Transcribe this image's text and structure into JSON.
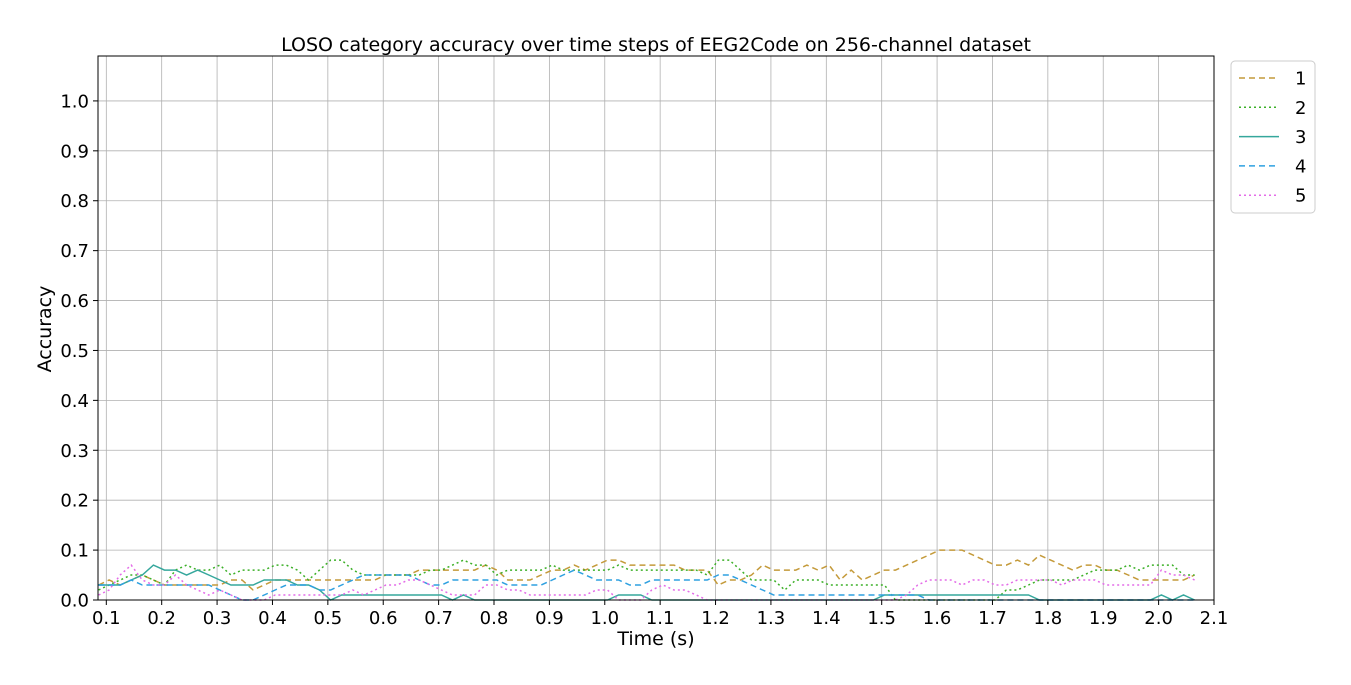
{
  "chart_data": {
    "type": "line",
    "title": "LOSO category accuracy over time steps of EEG2Code on 256-channel dataset",
    "xlabel": "Time (s)",
    "ylabel": "Accuracy",
    "xlim": [
      0.085,
      2.1
    ],
    "ylim": [
      0.0,
      1.09
    ],
    "xticks": [
      0.1,
      0.2,
      0.3,
      0.4,
      0.5,
      0.6,
      0.7,
      0.8,
      0.9,
      1.0,
      1.1,
      1.2,
      1.3,
      1.4,
      1.5,
      1.6,
      1.7,
      1.8,
      1.9,
      2.0,
      2.1
    ],
    "xtick_labels": [
      "0.1",
      "0.2",
      "0.3",
      "0.4",
      "0.5",
      "0.6",
      "0.7",
      "0.8",
      "0.9",
      "1.0",
      "1.1",
      "1.2",
      "1.3",
      "1.4",
      "1.5",
      "1.6",
      "1.7",
      "1.8",
      "1.9",
      "2.0",
      "2.1"
    ],
    "yticks": [
      0.0,
      0.1,
      0.2,
      0.3,
      0.4,
      0.5,
      0.6,
      0.7,
      0.8,
      0.9,
      1.0
    ],
    "ytick_labels": [
      "0.0",
      "0.1",
      "0.2",
      "0.3",
      "0.4",
      "0.5",
      "0.6",
      "0.7",
      "0.8",
      "0.9",
      "1.0"
    ],
    "grid": true,
    "legend_position": "outside-top-right",
    "x": [
      0.086,
      0.105,
      0.125,
      0.145,
      0.165,
      0.185,
      0.205,
      0.225,
      0.245,
      0.265,
      0.285,
      0.305,
      0.325,
      0.345,
      0.365,
      0.385,
      0.405,
      0.425,
      0.445,
      0.465,
      0.485,
      0.505,
      0.525,
      0.545,
      0.565,
      0.585,
      0.605,
      0.625,
      0.645,
      0.665,
      0.685,
      0.705,
      0.725,
      0.745,
      0.765,
      0.785,
      0.805,
      0.825,
      0.845,
      0.865,
      0.885,
      0.905,
      0.925,
      0.945,
      0.965,
      0.985,
      1.005,
      1.025,
      1.045,
      1.065,
      1.085,
      1.105,
      1.125,
      1.145,
      1.165,
      1.185,
      1.205,
      1.225,
      1.245,
      1.265,
      1.285,
      1.305,
      1.325,
      1.345,
      1.365,
      1.385,
      1.405,
      1.425,
      1.445,
      1.465,
      1.485,
      1.505,
      1.525,
      1.545,
      1.565,
      1.585,
      1.605,
      1.625,
      1.645,
      1.665,
      1.685,
      1.705,
      1.725,
      1.745,
      1.765,
      1.785,
      1.805,
      1.825,
      1.845,
      1.865,
      1.885,
      1.905,
      1.925,
      1.945,
      1.965,
      1.985,
      2.005,
      2.025,
      2.045,
      2.065
    ],
    "series": [
      {
        "name": "1",
        "color": "#c49a3a",
        "dash": "6,4",
        "values": [
          0.03,
          0.04,
          0.03,
          0.04,
          0.05,
          0.04,
          0.03,
          0.03,
          0.03,
          0.03,
          0.03,
          0.03,
          0.04,
          0.04,
          0.02,
          0.03,
          0.04,
          0.04,
          0.04,
          0.04,
          0.04,
          0.04,
          0.04,
          0.04,
          0.04,
          0.04,
          0.05,
          0.05,
          0.05,
          0.06,
          0.06,
          0.06,
          0.06,
          0.06,
          0.06,
          0.07,
          0.06,
          0.04,
          0.04,
          0.04,
          0.05,
          0.06,
          0.06,
          0.07,
          0.06,
          0.07,
          0.08,
          0.08,
          0.07,
          0.07,
          0.07,
          0.07,
          0.07,
          0.06,
          0.06,
          0.06,
          0.03,
          0.04,
          0.04,
          0.05,
          0.07,
          0.06,
          0.06,
          0.06,
          0.07,
          0.06,
          0.07,
          0.04,
          0.06,
          0.04,
          0.05,
          0.06,
          0.06,
          0.07,
          0.08,
          0.09,
          0.1,
          0.1,
          0.1,
          0.09,
          0.08,
          0.07,
          0.07,
          0.08,
          0.07,
          0.09,
          0.08,
          0.07,
          0.06,
          0.07,
          0.07,
          0.06,
          0.06,
          0.05,
          0.04,
          0.04,
          0.04,
          0.04,
          0.04,
          0.05
        ]
      },
      {
        "name": "2",
        "color": "#3cb028",
        "dash": "2,3",
        "values": [
          0.02,
          0.03,
          0.04,
          0.05,
          0.05,
          0.04,
          0.03,
          0.06,
          0.07,
          0.06,
          0.06,
          0.07,
          0.05,
          0.06,
          0.06,
          0.06,
          0.07,
          0.07,
          0.06,
          0.04,
          0.06,
          0.08,
          0.08,
          0.06,
          0.05,
          0.05,
          0.05,
          0.05,
          0.05,
          0.05,
          0.06,
          0.06,
          0.07,
          0.08,
          0.07,
          0.07,
          0.05,
          0.06,
          0.06,
          0.06,
          0.06,
          0.07,
          0.06,
          0.06,
          0.06,
          0.06,
          0.06,
          0.07,
          0.06,
          0.06,
          0.06,
          0.06,
          0.06,
          0.06,
          0.06,
          0.05,
          0.08,
          0.08,
          0.06,
          0.04,
          0.04,
          0.04,
          0.02,
          0.04,
          0.04,
          0.04,
          0.03,
          0.03,
          0.03,
          0.03,
          0.03,
          0.03,
          0.0,
          0.0,
          0.0,
          0.0,
          0.0,
          0.0,
          0.0,
          0.0,
          0.0,
          0.0,
          0.02,
          0.02,
          0.03,
          0.04,
          0.04,
          0.04,
          0.04,
          0.05,
          0.06,
          0.06,
          0.06,
          0.07,
          0.06,
          0.07,
          0.07,
          0.07,
          0.05,
          0.05
        ]
      },
      {
        "name": "3",
        "color": "#35a79c",
        "dash": "",
        "values": [
          0.03,
          0.03,
          0.03,
          0.04,
          0.05,
          0.07,
          0.06,
          0.06,
          0.05,
          0.06,
          0.05,
          0.04,
          0.03,
          0.03,
          0.03,
          0.04,
          0.04,
          0.04,
          0.03,
          0.03,
          0.02,
          0.0,
          0.01,
          0.01,
          0.01,
          0.01,
          0.01,
          0.01,
          0.01,
          0.01,
          0.01,
          0.01,
          0.0,
          0.01,
          0.0,
          0.0,
          0.0,
          0.0,
          0.0,
          0.0,
          0.0,
          0.0,
          0.0,
          0.0,
          0.0,
          0.0,
          0.0,
          0.01,
          0.01,
          0.01,
          0.0,
          0.0,
          0.0,
          0.0,
          0.0,
          0.0,
          0.0,
          0.0,
          0.0,
          0.0,
          0.0,
          0.0,
          0.0,
          0.0,
          0.0,
          0.0,
          0.0,
          0.0,
          0.0,
          0.0,
          0.0,
          0.01,
          0.01,
          0.01,
          0.01,
          0.01,
          0.01,
          0.01,
          0.01,
          0.01,
          0.01,
          0.01,
          0.01,
          0.01,
          0.01,
          0.0,
          0.0,
          0.0,
          0.0,
          0.0,
          0.0,
          0.0,
          0.0,
          0.0,
          0.0,
          0.0,
          0.01,
          0.0,
          0.01,
          0.0
        ]
      },
      {
        "name": "4",
        "color": "#2ea0e0",
        "dash": "6,4",
        "values": [
          0.03,
          0.03,
          0.03,
          0.04,
          0.03,
          0.03,
          0.03,
          0.03,
          0.03,
          0.03,
          0.03,
          0.02,
          0.01,
          0.0,
          0.0,
          0.01,
          0.02,
          0.03,
          0.03,
          0.03,
          0.02,
          0.02,
          0.03,
          0.04,
          0.05,
          0.05,
          0.05,
          0.05,
          0.05,
          0.04,
          0.03,
          0.03,
          0.04,
          0.04,
          0.04,
          0.04,
          0.04,
          0.03,
          0.03,
          0.03,
          0.03,
          0.04,
          0.05,
          0.06,
          0.05,
          0.04,
          0.04,
          0.04,
          0.03,
          0.03,
          0.04,
          0.04,
          0.04,
          0.04,
          0.04,
          0.04,
          0.05,
          0.05,
          0.04,
          0.03,
          0.02,
          0.01,
          0.01,
          0.01,
          0.01,
          0.01,
          0.01,
          0.01,
          0.01,
          0.01,
          0.01,
          0.01,
          0.01,
          0.01,
          0.01,
          0.0,
          0.0,
          0.0,
          0.0,
          0.0,
          0.0,
          0.0,
          0.0,
          0.0,
          0.0,
          0.0,
          0.0,
          0.0,
          0.0,
          0.0,
          0.0,
          0.0,
          0.0,
          0.0,
          0.0,
          0.0,
          0.0,
          0.0,
          0.0,
          0.0
        ]
      },
      {
        "name": "5",
        "color": "#e46be8",
        "dash": "2,3",
        "values": [
          0.01,
          0.02,
          0.05,
          0.07,
          0.04,
          0.03,
          0.03,
          0.05,
          0.03,
          0.02,
          0.01,
          0.02,
          0.01,
          0.0,
          0.0,
          0.0,
          0.01,
          0.01,
          0.01,
          0.01,
          0.01,
          0.01,
          0.01,
          0.02,
          0.01,
          0.02,
          0.03,
          0.03,
          0.04,
          0.04,
          0.03,
          0.02,
          0.01,
          0.01,
          0.01,
          0.03,
          0.03,
          0.02,
          0.02,
          0.01,
          0.01,
          0.01,
          0.01,
          0.01,
          0.01,
          0.02,
          0.02,
          0.0,
          0.0,
          0.0,
          0.02,
          0.03,
          0.02,
          0.02,
          0.01,
          0.0,
          0.0,
          0.0,
          0.0,
          0.0,
          0.0,
          0.0,
          0.0,
          0.0,
          0.0,
          0.0,
          0.0,
          0.0,
          0.0,
          0.0,
          0.0,
          0.0,
          0.0,
          0.01,
          0.03,
          0.04,
          0.04,
          0.04,
          0.03,
          0.04,
          0.04,
          0.03,
          0.03,
          0.04,
          0.04,
          0.04,
          0.04,
          0.03,
          0.04,
          0.04,
          0.04,
          0.03,
          0.03,
          0.03,
          0.03,
          0.03,
          0.06,
          0.05,
          0.05,
          0.04
        ]
      }
    ]
  }
}
